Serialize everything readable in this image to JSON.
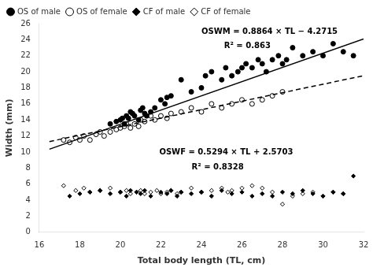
{
  "chart_data": {
    "type": "scatter",
    "xlabel": "Total body length (TL, cm)",
    "ylabel": "Width (mm)",
    "xlim": [
      16,
      32
    ],
    "ylim": [
      0,
      26
    ],
    "xticks": [
      16,
      18,
      20,
      22,
      24,
      26,
      28,
      30,
      32
    ],
    "yticks": [
      0,
      2,
      4,
      6,
      8,
      10,
      12,
      14,
      16,
      18,
      20,
      22,
      24,
      26
    ],
    "grid": false,
    "legend": "upper left",
    "series": [
      {
        "name": "OS of male",
        "color": "black",
        "marker": "circle",
        "x": [
          19.5,
          19.8,
          20.0,
          20.1,
          20.2,
          20.3,
          20.4,
          20.5,
          20.6,
          20.7,
          20.9,
          21.0,
          21.1,
          21.2,
          21.3,
          21.5,
          21.7,
          22.0,
          22.2,
          22.3,
          22.5,
          23.0,
          23.5,
          24.0,
          24.2,
          24.5,
          25.0,
          25.2,
          25.5,
          25.8,
          26.0,
          26.2,
          26.5,
          26.8,
          27.0,
          27.2,
          27.5,
          27.8,
          28.0,
          28.2,
          28.5,
          29.0,
          29.5,
          30.0,
          30.5,
          31.0,
          31.5
        ],
        "values": [
          13.5,
          13.8,
          14.0,
          14.2,
          13.5,
          14.5,
          14.2,
          15.0,
          14.8,
          14.5,
          14.0,
          15.2,
          15.5,
          14.8,
          14.5,
          15.0,
          15.5,
          16.5,
          16.0,
          16.8,
          17.0,
          19.0,
          17.5,
          18.0,
          19.5,
          20.0,
          19.0,
          20.5,
          19.5,
          20.0,
          20.5,
          21.0,
          20.5,
          21.5,
          21.0,
          20.0,
          21.5,
          22.0,
          21.0,
          21.5,
          23.0,
          22.0,
          22.5,
          22.0,
          23.5,
          22.5,
          22.0
        ]
      },
      {
        "name": "OS of female",
        "color": "black",
        "marker": "open_circle",
        "x": [
          17.2,
          17.5,
          17.8,
          18.0,
          18.2,
          18.5,
          18.8,
          19.0,
          19.2,
          19.5,
          19.8,
          20.0,
          20.2,
          20.3,
          20.5,
          20.7,
          20.9,
          21.0,
          21.2,
          21.5,
          21.7,
          22.0,
          22.3,
          22.5,
          23.0,
          23.5,
          24.0,
          24.5,
          25.0,
          25.5,
          26.0,
          26.5,
          27.0,
          27.5,
          28.0
        ],
        "values": [
          11.5,
          11.2,
          11.8,
          11.5,
          12.0,
          11.5,
          12.2,
          12.5,
          12.0,
          12.5,
          12.8,
          13.0,
          13.2,
          13.5,
          13.0,
          13.5,
          13.2,
          14.0,
          13.8,
          14.5,
          14.0,
          14.5,
          14.2,
          14.8,
          15.0,
          15.5,
          15.0,
          16.0,
          15.5,
          16.0,
          16.5,
          16.0,
          16.5,
          17.0,
          17.5
        ]
      },
      {
        "name": "CF of male",
        "color": "black",
        "marker": "diamond",
        "x": [
          17.5,
          18.0,
          18.5,
          19.0,
          19.5,
          20.0,
          20.3,
          20.5,
          20.8,
          21.0,
          21.2,
          21.5,
          22.0,
          22.3,
          22.5,
          22.8,
          23.0,
          23.5,
          24.0,
          24.5,
          25.0,
          25.5,
          26.0,
          26.5,
          27.0,
          27.5,
          28.0,
          28.5,
          29.0,
          29.5,
          30.0,
          30.5,
          31.0,
          31.5
        ],
        "values": [
          4.5,
          4.8,
          5.0,
          5.2,
          4.8,
          5.0,
          4.5,
          5.2,
          5.0,
          4.8,
          5.2,
          4.5,
          5.0,
          4.8,
          5.2,
          4.5,
          5.0,
          4.8,
          5.0,
          4.5,
          5.2,
          4.8,
          5.0,
          4.5,
          4.8,
          4.5,
          5.0,
          4.8,
          5.2,
          4.8,
          4.5,
          5.0,
          4.8,
          7.0
        ]
      },
      {
        "name": "CF of female",
        "color": "black",
        "marker": "open_diamond",
        "x": [
          17.2,
          17.8,
          18.2,
          18.5,
          19.0,
          19.5,
          20.0,
          20.3,
          20.5,
          20.8,
          21.0,
          21.2,
          21.5,
          21.8,
          22.0,
          22.3,
          22.5,
          22.8,
          23.0,
          23.5,
          24.0,
          24.5,
          25.0,
          25.3,
          25.5,
          26.0,
          26.5,
          27.0,
          27.5,
          28.0,
          28.5,
          29.0,
          29.5,
          30.0,
          30.5,
          31.0
        ],
        "values": [
          5.8,
          5.2,
          5.5,
          5.0,
          5.2,
          5.5,
          5.0,
          5.2,
          4.8,
          5.0,
          5.2,
          4.8,
          5.0,
          5.2,
          4.8,
          5.0,
          5.2,
          4.8,
          5.0,
          5.5,
          5.0,
          5.2,
          5.5,
          5.0,
          5.2,
          5.5,
          5.8,
          5.5,
          5.0,
          3.5,
          4.5,
          4.8,
          5.0,
          4.5,
          5.0,
          4.8
        ]
      },
      {
        "type": "line",
        "line_style": "solid",
        "color": "black",
        "x": [
          16.5,
          32
        ],
        "values": [
          10.3541,
          24.0933
        ]
      },
      {
        "type": "line",
        "line_style": "dashed",
        "color": "black",
        "x": [
          16.5,
          32
        ],
        "values": [
          11.3054,
          19.5111
        ]
      }
    ],
    "annotations": [
      "OSWM = 0.8864 × TL − 4.2715",
      "R² = 0.863",
      "OSWF = 0.5294 × TL + 2.5703",
      "R² = 0.8328"
    ]
  }
}
